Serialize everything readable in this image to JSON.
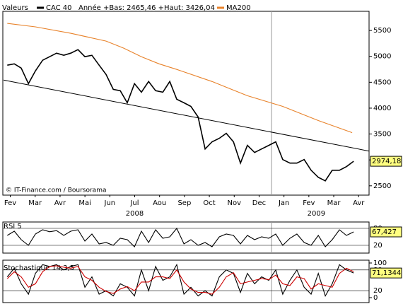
{
  "chart_data": [
    {
      "type": "line",
      "header": "Valeurs",
      "annotation": "Année +Bas: 2465,46 +Haut: 3426,04",
      "source": "© IT-Finance.com / Boursorama",
      "xlim": [
        1.2,
        15.92
      ],
      "xticks": [
        {
          "value": 1.5,
          "label": "Fev"
        },
        {
          "value": 2.5,
          "label": "Mar"
        },
        {
          "value": 3.5,
          "label": "Avr"
        },
        {
          "value": 4.5,
          "label": "Mai"
        },
        {
          "value": 5.5,
          "label": "Jun"
        },
        {
          "value": 6.5,
          "label": "Jul"
        },
        {
          "value": 7.5,
          "label": "Aou"
        },
        {
          "value": 8.5,
          "label": "Sep"
        },
        {
          "value": 9.5,
          "label": "Oct"
        },
        {
          "value": 10.5,
          "label": "Nov"
        },
        {
          "value": 11.5,
          "label": "Dec"
        },
        {
          "value": 12.5,
          "label": "Jan"
        },
        {
          "value": 13.5,
          "label": "Fev"
        },
        {
          "value": 14.5,
          "label": "Mar"
        },
        {
          "value": 15.5,
          "label": "Avr"
        }
      ],
      "year_labels": [
        {
          "value": 6.5,
          "label": "2008"
        },
        {
          "value": 13.8,
          "label": "2009"
        }
      ],
      "year_lines": [
        12
      ],
      "ylim": [
        2320,
        5870
      ],
      "yticks": [
        2500,
        3000,
        3500,
        4000,
        4500,
        5000,
        5500
      ],
      "series": [
        {
          "name": "CAC 40",
          "color": "#000000",
          "x": [
            1.38,
            1.66,
            1.94,
            2.23,
            2.51,
            2.8,
            3.08,
            3.36,
            3.65,
            3.93,
            4.22,
            4.5,
            4.78,
            5.07,
            5.35,
            5.64,
            5.92,
            6.2,
            6.49,
            6.77,
            7.06,
            7.34,
            7.63,
            7.91,
            8.19,
            8.48,
            8.76,
            9.05,
            9.33,
            9.61,
            9.9,
            10.18,
            10.47,
            10.75,
            11.03,
            11.32,
            11.6,
            11.89,
            12.17,
            12.45,
            12.74,
            13.02,
            13.31,
            13.59,
            13.88,
            14.16,
            14.44,
            14.73,
            15.01,
            15.3
          ],
          "values": [
            4829,
            4856,
            4774,
            4473,
            4719,
            4925,
            4993,
            5062,
            5021,
            5062,
            5130,
            4993,
            5021,
            4829,
            4651,
            4363,
            4336,
            4103,
            4473,
            4308,
            4514,
            4336,
            4308,
            4514,
            4171,
            4103,
            4034,
            3829,
            3212,
            3349,
            3418,
            3514,
            3349,
            2938,
            3281,
            3144,
            3212,
            3281,
            3349,
            3007,
            2938,
            2938,
            3007,
            2801,
            2664,
            2596,
            2801,
            2801,
            2870,
            2974.18
          ]
        },
        {
          "name": "MA200",
          "color": "#e8822a",
          "x": [
            1.38,
            2.51,
            3.93,
            5.35,
            6.06,
            6.77,
            7.48,
            8.19,
            9.61,
            11.03,
            12.45,
            13.88,
            15.24
          ],
          "values": [
            5637,
            5569,
            5445,
            5295,
            5158,
            4993,
            4856,
            4747,
            4514,
            4240,
            4034,
            3760,
            3527
          ]
        }
      ],
      "trendline": {
        "x": [
          1.23,
          15.92
        ],
        "values": [
          4541,
          3171
        ],
        "color": "#000000"
      },
      "last_value": {
        "value": 2974.18,
        "label": "2974,18"
      }
    },
    {
      "type": "line",
      "title": "RSI 5",
      "xlim": [
        1.2,
        15.92
      ],
      "year_lines": [
        12
      ],
      "ylim": [
        0,
        100
      ],
      "yticks": [
        20,
        80
      ],
      "series": [
        {
          "color": "#000000",
          "x": [
            1.38,
            1.66,
            1.94,
            2.23,
            2.51,
            2.8,
            3.08,
            3.36,
            3.65,
            3.93,
            4.22,
            4.5,
            4.78,
            5.07,
            5.35,
            5.64,
            5.92,
            6.2,
            6.49,
            6.77,
            7.06,
            7.34,
            7.63,
            7.91,
            8.19,
            8.48,
            8.76,
            9.05,
            9.33,
            9.61,
            9.9,
            10.18,
            10.47,
            10.75,
            11.03,
            11.32,
            11.6,
            11.89,
            12.17,
            12.45,
            12.74,
            13.02,
            13.31,
            13.59,
            13.88,
            14.16,
            14.44,
            14.73,
            15.01,
            15.3
          ],
          "values": [
            55,
            70,
            40,
            20,
            60,
            75,
            68,
            72,
            55,
            70,
            75,
            35,
            60,
            25,
            30,
            20,
            45,
            40,
            15,
            70,
            30,
            75,
            45,
            50,
            80,
            25,
            40,
            20,
            30,
            15,
            50,
            60,
            55,
            25,
            55,
            40,
            50,
            45,
            60,
            20,
            45,
            60,
            30,
            20,
            55,
            15,
            40,
            75,
            55,
            67.427
          ]
        }
      ],
      "last_value": {
        "value": 67.427,
        "label": "67,427"
      }
    },
    {
      "type": "line",
      "title": "Stochastique 14,3,5",
      "xlim": [
        1.2,
        15.92
      ],
      "year_lines": [
        12
      ],
      "ylim": [
        0,
        100
      ],
      "yticks": [
        0,
        20,
        80,
        100
      ],
      "series": [
        {
          "color": "#000000",
          "x": [
            1.38,
            1.66,
            1.94,
            2.23,
            2.51,
            2.8,
            3.08,
            3.36,
            3.65,
            3.93,
            4.22,
            4.5,
            4.78,
            5.07,
            5.35,
            5.64,
            5.92,
            6.2,
            6.49,
            6.77,
            7.06,
            7.34,
            7.63,
            7.91,
            8.19,
            8.48,
            8.76,
            9.05,
            9.33,
            9.61,
            9.9,
            10.18,
            10.47,
            10.75,
            11.03,
            11.32,
            11.6,
            11.89,
            12.17,
            12.45,
            12.74,
            13.02,
            13.31,
            13.59,
            13.88,
            14.16,
            14.44,
            14.73,
            15.01,
            15.3
          ],
          "values": [
            60,
            85,
            40,
            10,
            70,
            95,
            90,
            95,
            80,
            90,
            95,
            30,
            60,
            10,
            20,
            5,
            40,
            30,
            5,
            80,
            20,
            90,
            50,
            60,
            95,
            10,
            30,
            5,
            20,
            5,
            60,
            80,
            70,
            15,
            70,
            40,
            60,
            50,
            80,
            10,
            50,
            80,
            30,
            10,
            70,
            5,
            40,
            95,
            80,
            71.1344
          ]
        },
        {
          "color": "#cc0000",
          "x": [
            1.38,
            1.66,
            1.94,
            2.23,
            2.51,
            2.8,
            3.08,
            3.36,
            3.65,
            3.93,
            4.22,
            4.5,
            4.78,
            5.07,
            5.35,
            5.64,
            5.92,
            6.2,
            6.49,
            6.77,
            7.06,
            7.34,
            7.63,
            7.91,
            8.19,
            8.48,
            8.76,
            9.05,
            9.33,
            9.61,
            9.9,
            10.18,
            10.47,
            10.75,
            11.03,
            11.32,
            11.6,
            11.89,
            12.17,
            12.45,
            12.74,
            13.02,
            13.31,
            13.59,
            13.88,
            14.16,
            14.44,
            14.73,
            15.01,
            15.3
          ],
          "values": [
            55,
            75,
            60,
            30,
            40,
            75,
            90,
            92,
            88,
            85,
            90,
            60,
            50,
            30,
            18,
            12,
            25,
            32,
            20,
            45,
            45,
            60,
            60,
            55,
            80,
            45,
            25,
            15,
            15,
            10,
            30,
            60,
            72,
            40,
            45,
            50,
            55,
            52,
            65,
            40,
            35,
            60,
            55,
            25,
            40,
            35,
            30,
            70,
            85,
            75
          ]
        }
      ],
      "last_value": {
        "value": 71.1344,
        "label": "71,1344"
      }
    }
  ]
}
